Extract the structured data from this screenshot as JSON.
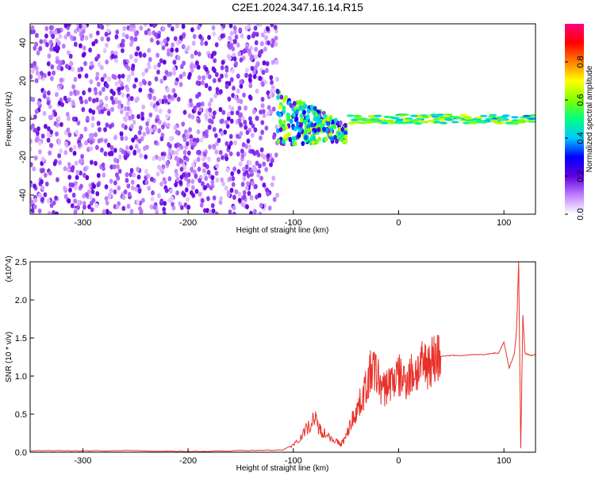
{
  "figure_title": "C2E1.2024.347.16.14.R15",
  "chart_data": [
    {
      "type": "heatmap",
      "title": "C2E1.2024.347.16.14.R15",
      "xlabel": "Height of straight line (km)",
      "ylabel": "Frequency (Hz)",
      "xlim": [
        -350,
        130
      ],
      "ylim": [
        -50,
        50
      ],
      "x_ticks": [
        -300,
        -200,
        -100,
        0,
        100
      ],
      "y_ticks": [
        -40,
        -20,
        0,
        20,
        40
      ],
      "colorbar": {
        "label": "Normalized spectral amplitude",
        "range": [
          0,
          1
        ],
        "ticks": [
          "0.0",
          "0.2",
          "0.4",
          "0.6",
          "0.8"
        ],
        "colors": [
          "#ffffff",
          "#c080ff",
          "#6000e0",
          "#0000ff",
          "#00c8ff",
          "#00ff80",
          "#80ff00",
          "#ffff00",
          "#ff8000",
          "#ff0000",
          "#ff0080"
        ]
      },
      "description_regions": [
        {
          "x_range": [
            -350,
            -115
          ],
          "freq_range": [
            -50,
            50
          ],
          "amplitude": 0.1
        },
        {
          "x_range": [
            -115,
            -50
          ],
          "freq_range": [
            -20,
            12
          ],
          "amplitude": 0.35
        },
        {
          "x_range": [
            -50,
            130
          ],
          "freq_range": [
            -3,
            3
          ],
          "amplitude": 0.7
        }
      ]
    },
    {
      "type": "line",
      "xlabel": "Height of straight line (km)",
      "ylabel": "SNR (10 * v/v)",
      "y_multiplier": "(x10^4)",
      "xlim": [
        -350,
        130
      ],
      "ylim": [
        0,
        2.5
      ],
      "x_ticks": [
        -300,
        -200,
        -100,
        0,
        100
      ],
      "y_ticks": [
        "0.0",
        "0.5",
        "1.0",
        "1.5",
        "2.0",
        "2.5"
      ],
      "color": "#e8312a",
      "x": [
        -350,
        -300,
        -250,
        -200,
        -150,
        -110,
        -100,
        -90,
        -80,
        -75,
        -70,
        -60,
        -55,
        -50,
        -45,
        -40,
        -35,
        -30,
        -25,
        -20,
        -15,
        -10,
        -5,
        0,
        5,
        10,
        15,
        20,
        25,
        30,
        35,
        40,
        50,
        60,
        70,
        80,
        90,
        95,
        100,
        105,
        110,
        112,
        114,
        116,
        118,
        120,
        125,
        130
      ],
      "values": [
        0.02,
        0.02,
        0.02,
        0.01,
        0.02,
        0.03,
        0.1,
        0.25,
        0.45,
        0.3,
        0.25,
        0.15,
        0.1,
        0.2,
        0.4,
        0.55,
        0.7,
        0.9,
        1.1,
        1.0,
        0.8,
        0.9,
        0.95,
        1.0,
        0.95,
        1.0,
        1.05,
        1.1,
        1.15,
        1.2,
        1.24,
        1.26,
        1.27,
        1.27,
        1.28,
        1.28,
        1.3,
        1.3,
        1.45,
        1.1,
        1.3,
        1.6,
        2.5,
        0.05,
        1.8,
        1.3,
        1.27,
        1.28
      ]
    }
  ]
}
